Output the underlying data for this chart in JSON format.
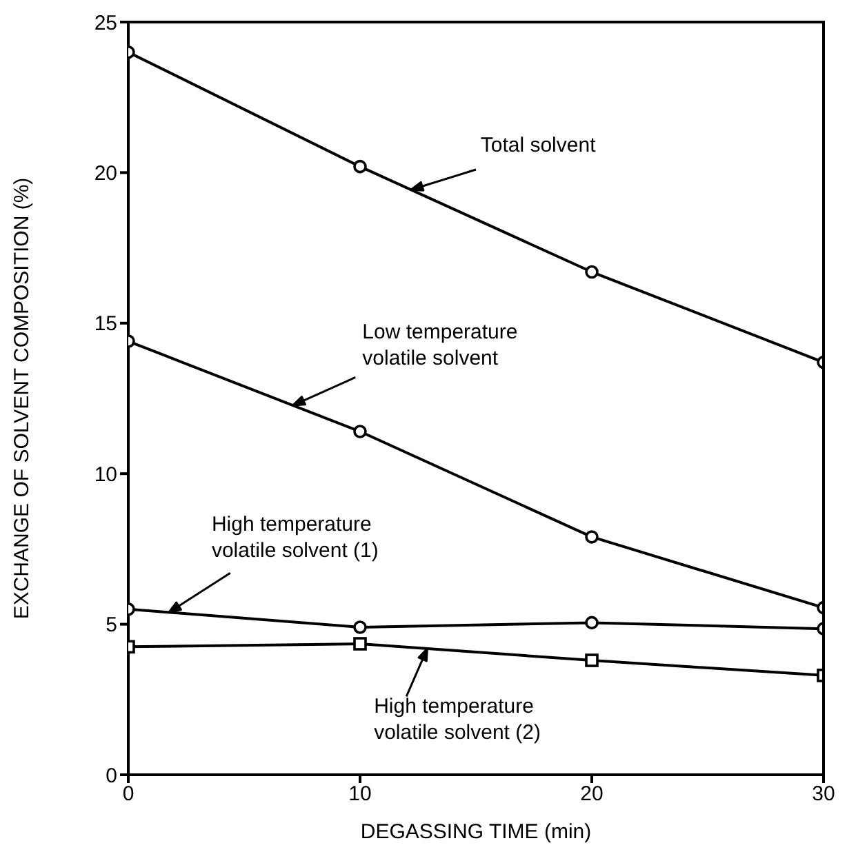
{
  "chart_data": {
    "type": "line",
    "xlabel": "DEGASSING TIME (min)",
    "ylabel": "EXCHANGE OF SOLVENT COMPOSITION (%)",
    "x": [
      0,
      10,
      20,
      30
    ],
    "xlim": [
      0,
      30
    ],
    "xticks": [
      0,
      10,
      20,
      30
    ],
    "ylim": [
      0,
      25
    ],
    "yticks": [
      0,
      5,
      10,
      15,
      20,
      25
    ],
    "line_style": "solid",
    "series": [
      {
        "name": "Total solvent",
        "color": "#000000",
        "marker": "circle",
        "values": [
          24,
          20.2,
          16.7,
          13.7
        ]
      },
      {
        "name": "Low temperature volatile solvent",
        "color": "#000000",
        "marker": "circle",
        "values": [
          14.4,
          11.4,
          7.9,
          5.55
        ]
      },
      {
        "name": "High temperature volatile solvent (1)",
        "color": "#000000",
        "marker": "circle",
        "values": [
          5.5,
          4.9,
          5.05,
          4.85
        ]
      },
      {
        "name": "High temperature volatile solvent (2)",
        "color": "#000000",
        "marker": "square",
        "values": [
          4.25,
          4.35,
          3.8,
          3.3
        ]
      }
    ]
  }
}
